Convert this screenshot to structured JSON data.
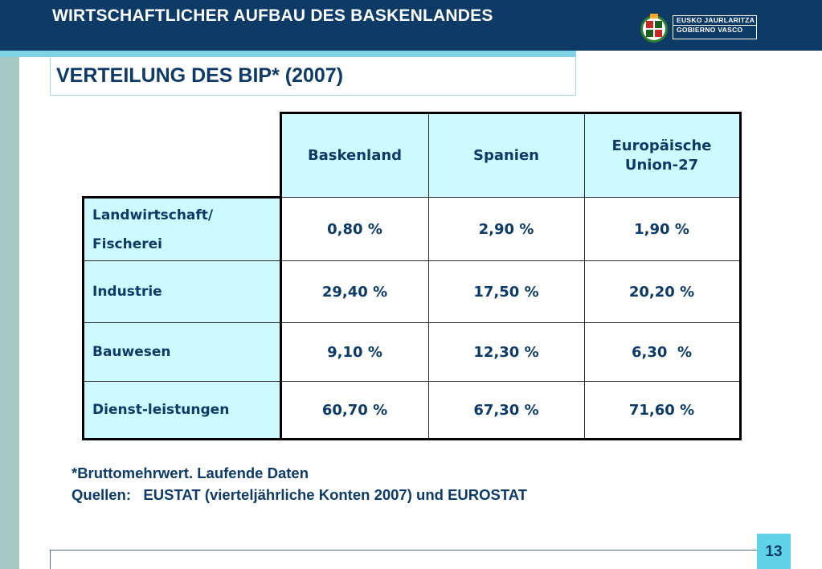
{
  "header": {
    "title": "WIRTSCHAFTLICHER AUFBAU DES BASKENLANDES",
    "logo_line1": "EUSKO JAURLARITZA",
    "logo_line2": "GOBIERNO VASCO"
  },
  "subtitle": "VERTEILUNG DES BIP* (2007)",
  "table": {
    "columns": [
      "Baskenland",
      "Spanien",
      "Europäische Union-27"
    ],
    "rows": [
      {
        "label_lines": [
          "Landwirtschaft/",
          "Fischerei"
        ],
        "values": [
          "0,80 %",
          "2,90 %",
          "1,90 %"
        ]
      },
      {
        "label": "Industrie",
        "values": [
          "29,40 %",
          "17,50 %",
          "20,20 %"
        ]
      },
      {
        "label": "Bauwesen",
        "values": [
          "9,10 %",
          "12,30 %",
          "6,30  %"
        ]
      },
      {
        "label": "Dienst-leistungen",
        "values": [
          "60,70 %",
          "67,30 %",
          "71,60 %"
        ]
      }
    ]
  },
  "footnote": {
    "line1": "*Bruttomehrwert. Laufende Daten",
    "line2": "Quellen:   EUSTAT (vierteljährliche Konten 2007) und EUROSTAT"
  },
  "page_number": "13",
  "colors": {
    "header_bg": "#0d3b66",
    "accent": "#7fd3e6",
    "cell_highlight": "#ccfaff",
    "text": "#0d3b66"
  }
}
